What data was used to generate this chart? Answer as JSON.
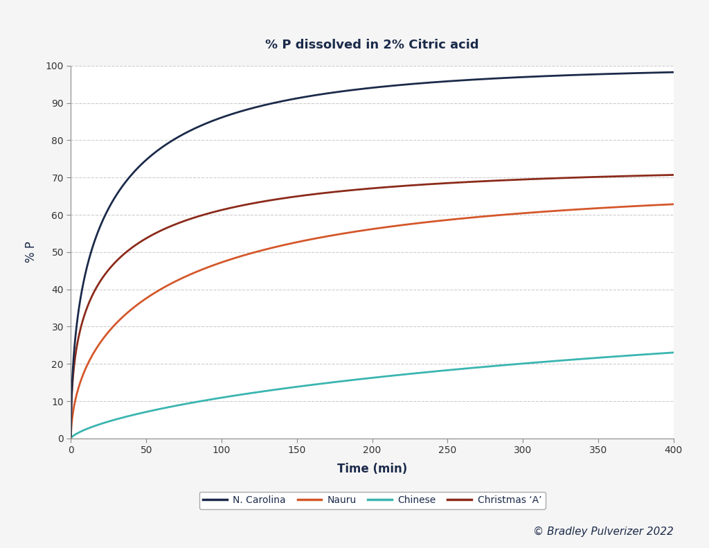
{
  "title": "% P dissolved in 2% Citric acid",
  "xlabel": "Time (min)",
  "ylabel": "% P",
  "xlim": [
    0,
    400
  ],
  "ylim": [
    0,
    100
  ],
  "xticks": [
    0,
    50,
    100,
    150,
    200,
    250,
    300,
    350,
    400
  ],
  "yticks": [
    0,
    10,
    20,
    30,
    40,
    50,
    60,
    70,
    80,
    90,
    100
  ],
  "background_color": "#f5f5f5",
  "plot_bg_color": "#ffffff",
  "series": [
    {
      "label": "N. Carolina",
      "color": "#1b2a4a",
      "a": 100.0,
      "k": 0.18,
      "p": 0.52
    },
    {
      "label": "Nauru",
      "color": "#d4572a",
      "a": 68.0,
      "k": 0.09,
      "p": 0.56
    },
    {
      "label": "Chinese",
      "color": "#3ab5b0",
      "a": 42.0,
      "k": 0.012,
      "p": 0.7
    },
    {
      "label": "Christmas ‘A’",
      "color": "#8b2a1a",
      "a": 73.0,
      "k": 0.22,
      "p": 0.46
    }
  ],
  "plot_order": [
    "Chinese",
    "Nauru",
    "Christmas ‘A’",
    "N. Carolina"
  ],
  "legend_order": [
    "N. Carolina",
    "Nauru",
    "Chinese",
    "Christmas ‘A’"
  ],
  "watermark": "© Bradley Pulverizer 2022",
  "title_color": "#1b2a4a",
  "axis_label_color": "#1b2a4a",
  "tick_color": "#333333",
  "grid_color": "#cccccc",
  "spine_color": "#888888",
  "title_fontsize": 13,
  "label_fontsize": 12,
  "tick_fontsize": 10,
  "legend_fontsize": 10,
  "watermark_fontsize": 11,
  "linewidth": 2.0
}
